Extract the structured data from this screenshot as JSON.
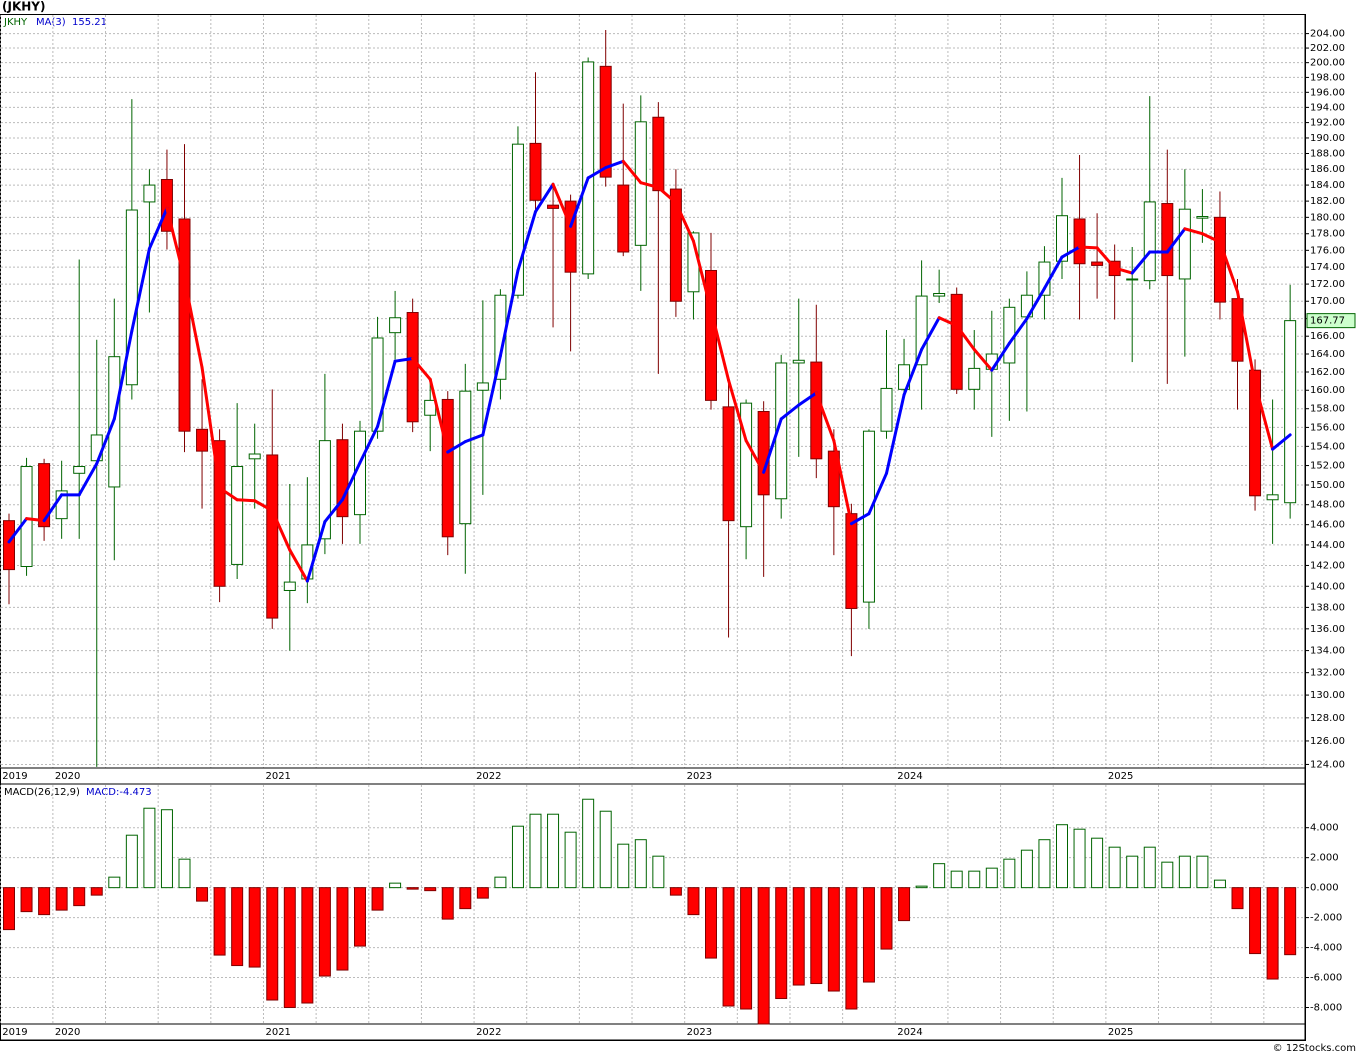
{
  "chart_data": [
    {
      "type": "candlestick",
      "title": "(JKHY)",
      "symbol": "JKHY",
      "log": true,
      "grid": true,
      "up_color": "#006400",
      "down_color": "#ff0000",
      "down_edge": "#800000",
      "categories": [
        "2019",
        null,
        null,
        "2020",
        null,
        null,
        null,
        null,
        null,
        null,
        null,
        null,
        null,
        null,
        null,
        "2021",
        null,
        null,
        null,
        null,
        null,
        null,
        null,
        null,
        null,
        null,
        null,
        "2022",
        null,
        null,
        null,
        null,
        null,
        null,
        null,
        null,
        null,
        null,
        null,
        "2023",
        null,
        null,
        null,
        null,
        null,
        null,
        null,
        null,
        null,
        null,
        null,
        "2024",
        null,
        null,
        null,
        null,
        null,
        null,
        null,
        null,
        null,
        null,
        null,
        "2025",
        null,
        null,
        null,
        null,
        null,
        null,
        null,
        null,
        null,
        null
      ],
      "open": [
        146.4,
        141.9,
        152.2,
        146.6,
        151.2,
        152.5,
        149.8,
        160.6,
        181.9,
        184.7,
        179.8,
        155.8,
        154.6,
        142.1,
        152.7,
        153.1,
        139.6,
        140.7,
        144.6,
        154.7,
        147.0,
        155.6,
        166.4,
        168.7,
        157.3,
        159.0,
        146.1,
        160.0,
        161.2,
        170.7,
        189.3,
        181.5,
        182.0,
        173.2,
        199.5,
        184.0,
        176.6,
        192.7,
        183.5,
        171.1,
        173.6,
        158.2,
        145.8,
        157.7,
        148.6,
        163.0,
        163.1,
        153.5,
        147.1,
        138.5,
        155.6,
        160.1,
        162.8,
        170.6,
        170.8,
        160.1,
        162.3,
        163.0,
        168.2,
        170.7,
        174.7,
        179.8,
        174.6,
        174.7,
        172.5,
        172.4,
        181.7,
        172.6,
        179.9,
        180.0,
        170.3,
        162.2,
        148.5,
        148.2
      ],
      "high": [
        147.1,
        152.8,
        152.7,
        152.5,
        174.9,
        165.6,
        170.3,
        195.1,
        186.0,
        188.5,
        189.2,
        161.2,
        155.8,
        158.6,
        156.4,
        160.1,
        150.1,
        150.8,
        161.8,
        156.4,
        156.7,
        168.2,
        171.2,
        170.3,
        161.2,
        159.9,
        162.9,
        170.1,
        171.4,
        191.5,
        198.7,
        184.3,
        182.8,
        200.7,
        204.5,
        194.5,
        195.6,
        194.7,
        186.0,
        178.3,
        178.1,
        161.2,
        159.0,
        158.8,
        163.9,
        170.3,
        169.6,
        155.8,
        148.1,
        155.8,
        166.7,
        165.7,
        174.8,
        173.7,
        171.6,
        166.7,
        168.9,
        170.3,
        173.5,
        176.5,
        184.9,
        187.8,
        180.5,
        176.7,
        176.4,
        195.5,
        188.5,
        186.0,
        183.5,
        183.2,
        172.6,
        163.4,
        159.0,
        171.9
      ],
      "low": [
        138.3,
        141.0,
        144.4,
        144.6,
        144.6,
        123.8,
        142.5,
        159.0,
        168.7,
        176.1,
        153.4,
        147.6,
        138.5,
        140.7,
        147.6,
        136.0,
        134.0,
        138.4,
        143.1,
        144.1,
        144.1,
        154.8,
        163.4,
        155.5,
        153.5,
        143.0,
        141.2,
        149.0,
        159.0,
        170.3,
        180.4,
        167.0,
        164.3,
        172.6,
        183.8,
        175.3,
        171.2,
        161.8,
        168.2,
        167.9,
        157.9,
        135.2,
        142.6,
        140.9,
        146.6,
        152.9,
        150.7,
        143.0,
        133.5,
        136.0,
        154.8,
        159.2,
        157.9,
        169.8,
        159.6,
        157.9,
        155.0,
        156.7,
        157.7,
        167.9,
        172.6,
        167.9,
        170.3,
        167.9,
        163.1,
        171.4,
        160.7,
        163.7,
        176.9,
        167.9,
        157.9,
        147.4,
        144.1,
        146.6
      ],
      "close": [
        141.6,
        151.9,
        145.8,
        149.4,
        151.9,
        155.2,
        163.7,
        180.9,
        184.0,
        178.3,
        155.6,
        153.5,
        140.0,
        151.9,
        153.2,
        137.0,
        140.4,
        144.0,
        154.6,
        146.8,
        155.6,
        165.8,
        168.1,
        156.6,
        158.9,
        144.8,
        159.9,
        160.8,
        170.7,
        189.2,
        182.1,
        181.1,
        173.4,
        200.1,
        185.0,
        175.8,
        192.1,
        183.3,
        170.0,
        178.1,
        158.9,
        146.4,
        158.6,
        149.0,
        163.0,
        163.3,
        152.7,
        147.8,
        137.9,
        155.6,
        160.2,
        162.8,
        170.6,
        170.9,
        160.1,
        162.4,
        164.0,
        169.3,
        170.7,
        174.6,
        180.2,
        174.4,
        174.2,
        173.0,
        172.6,
        181.9,
        173.0,
        181.0,
        180.1,
        169.9,
        163.2,
        148.9,
        149.0,
        167.77
      ],
      "ma": {
        "name": "MA(3)",
        "up_color": "#0000ff",
        "down_color": "#ff0000",
        "values": [
          144.3,
          146.6,
          146.4,
          149.0,
          149.0,
          152.2,
          156.9,
          166.6,
          176.2,
          181.1,
          172.6,
          162.5,
          149.7,
          148.5,
          148.4,
          147.4,
          143.5,
          140.5,
          146.3,
          148.5,
          152.3,
          156.1,
          163.2,
          163.5,
          161.2,
          153.4,
          154.5,
          155.2,
          163.8,
          173.6,
          180.7,
          184.1,
          178.9,
          184.9,
          186.2,
          187.0,
          184.3,
          183.7,
          181.8,
          177.1,
          169.0,
          161.1,
          154.6,
          151.3,
          156.9,
          158.4,
          159.7,
          154.6,
          146.1,
          147.1,
          151.2,
          159.5,
          164.5,
          168.1,
          167.2,
          164.5,
          162.2,
          165.2,
          168.0,
          171.5,
          175.2,
          176.4,
          176.3,
          173.9,
          173.3,
          175.8,
          175.8,
          178.6,
          178.0,
          177.0,
          171.1,
          160.7,
          153.7,
          155.21
        ]
      },
      "ylim": [
        123.7,
        206.6
      ],
      "yticks": [
        {
          "value": 204,
          "label": "204.00"
        },
        {
          "value": 202,
          "label": "202.00"
        },
        {
          "value": 200,
          "label": "200.00"
        },
        {
          "value": 198,
          "label": "198.00"
        },
        {
          "value": 196,
          "label": "196.00"
        },
        {
          "value": 194,
          "label": "194.00"
        },
        {
          "value": 192,
          "label": "192.00"
        },
        {
          "value": 190,
          "label": "190.00"
        },
        {
          "value": 188,
          "label": "188.00"
        },
        {
          "value": 186,
          "label": "186.00"
        },
        {
          "value": 184,
          "label": "184.00"
        },
        {
          "value": 182,
          "label": "182.00"
        },
        {
          "value": 180,
          "label": "180.00"
        },
        {
          "value": 178,
          "label": "178.00"
        },
        {
          "value": 176,
          "label": "176.00"
        },
        {
          "value": 174,
          "label": "174.00"
        },
        {
          "value": 172,
          "label": "172.00"
        },
        {
          "value": 170,
          "label": "170.00"
        },
        {
          "value": 168,
          "label": "168.00"
        },
        {
          "value": 166,
          "label": "166.00"
        },
        {
          "value": 164,
          "label": "164.00"
        },
        {
          "value": 162,
          "label": "162.00"
        },
        {
          "value": 160,
          "label": "160.00"
        },
        {
          "value": 158,
          "label": "158.00"
        },
        {
          "value": 156,
          "label": "156.00"
        },
        {
          "value": 154,
          "label": "154.00"
        },
        {
          "value": 152,
          "label": "152.00"
        },
        {
          "value": 150,
          "label": "150.00"
        },
        {
          "value": 148,
          "label": "148.00"
        },
        {
          "value": 146,
          "label": "146.00"
        },
        {
          "value": 144,
          "label": "144.00"
        },
        {
          "value": 142,
          "label": "142.00"
        },
        {
          "value": 140,
          "label": "140.00"
        },
        {
          "value": 138,
          "label": "138.00"
        },
        {
          "value": 136,
          "label": "136.00"
        },
        {
          "value": 134,
          "label": "134.00"
        },
        {
          "value": 132,
          "label": "132.00"
        },
        {
          "value": 130,
          "label": "130.00"
        },
        {
          "value": 128,
          "label": "128.00"
        },
        {
          "value": 126,
          "label": "126.00"
        },
        {
          "value": 124,
          "label": "124.00"
        }
      ]
    },
    {
      "type": "bar",
      "title": "MACD(26,12,9)",
      "value_name": "MACD:",
      "grid": true,
      "pos_color": "#006400",
      "neg_color": "#ff0000",
      "categories": [
        "2019",
        null,
        null,
        "2020",
        null,
        null,
        null,
        null,
        null,
        null,
        null,
        null,
        null,
        null,
        null,
        "2021",
        null,
        null,
        null,
        null,
        null,
        null,
        null,
        null,
        null,
        null,
        null,
        "2022",
        null,
        null,
        null,
        null,
        null,
        null,
        null,
        null,
        null,
        null,
        null,
        "2023",
        null,
        null,
        null,
        null,
        null,
        null,
        null,
        null,
        null,
        null,
        null,
        "2024",
        null,
        null,
        null,
        null,
        null,
        null,
        null,
        null,
        null,
        null,
        null,
        "2025",
        null,
        null,
        null,
        null,
        null,
        null,
        null,
        null,
        null,
        null
      ],
      "values": [
        -2.8,
        -1.6,
        -1.8,
        -1.5,
        -1.2,
        -0.5,
        0.7,
        3.5,
        5.3,
        5.2,
        1.9,
        -0.9,
        -4.5,
        -5.2,
        -5.3,
        -7.5,
        -8.0,
        -7.7,
        -5.9,
        -5.5,
        -3.9,
        -1.5,
        0.3,
        -0.1,
        -0.2,
        -2.1,
        -1.4,
        -0.7,
        0.7,
        4.1,
        4.9,
        4.9,
        3.7,
        5.9,
        5.1,
        2.9,
        3.2,
        2.1,
        -0.5,
        -1.8,
        -4.7,
        -7.9,
        -8.1,
        -9.1,
        -7.4,
        -6.5,
        -6.4,
        -6.9,
        -8.1,
        -6.3,
        -4.1,
        -2.2,
        0.1,
        1.6,
        1.1,
        1.1,
        1.3,
        1.9,
        2.5,
        3.2,
        4.2,
        3.9,
        3.3,
        2.7,
        2.1,
        2.7,
        1.7,
        2.1,
        2.1,
        0.5,
        -1.4,
        -4.4,
        -6.1,
        -4.473
      ],
      "ylim": [
        -9.1,
        6.85
      ],
      "yticks": [
        {
          "value": 4,
          "label": "4.000"
        },
        {
          "value": 2,
          "label": "2.000"
        },
        {
          "value": 0,
          "label": "0.000"
        },
        {
          "value": -2,
          "label": "-2.000"
        },
        {
          "value": -4,
          "label": "-4.000"
        },
        {
          "value": -6,
          "label": "-6.000"
        },
        {
          "value": -8,
          "label": "-8.000"
        }
      ]
    }
  ],
  "credit": "© 12Stocks.com"
}
